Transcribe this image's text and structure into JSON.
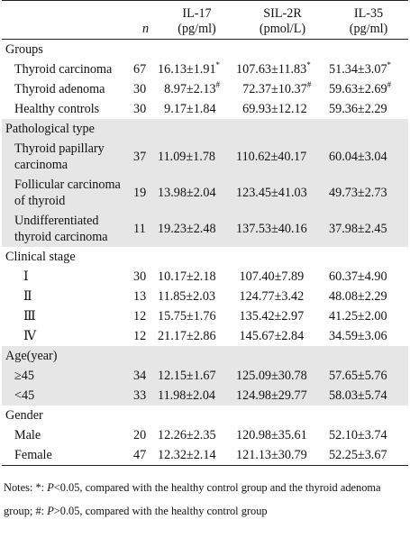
{
  "header": {
    "col_label": "",
    "col_n": "n",
    "col_il17_line1": "IL-17",
    "col_il17_line2": "(pg/ml)",
    "col_sil_line1": "SIL-2R",
    "col_sil_line2": "(pmol/L)",
    "col_il35_line1": "IL-35",
    "col_il35_line2": "(pg/ml)"
  },
  "sections": [
    {
      "title": "Groups",
      "shade": false,
      "rows": [
        {
          "label": "Thyroid carcinoma",
          "n": "67",
          "il17": "16.13±1.91",
          "il17_sup": "*",
          "sil": "107.63±11.83",
          "sil_sup": "*",
          "il35": "51.34±3.07",
          "il35_sup": "*"
        },
        {
          "label": "Thyroid adenoma",
          "n": "30",
          "il17": "8.97±2.13",
          "il17_sup": "#",
          "sil": "72.37±10.37",
          "sil_sup": "#",
          "il35": "59.63±2.69",
          "il35_sup": "#"
        },
        {
          "label": "Healthy controls",
          "n": "30",
          "il17": "9.17±1.84",
          "il17_sup": "",
          "sil": "69.93±12.12",
          "sil_sup": "",
          "il35": "59.36±2.29",
          "il35_sup": ""
        }
      ]
    },
    {
      "title": "Pathological type",
      "shade": true,
      "rows": [
        {
          "label_line1": "Thyroid papillary",
          "label_line2": "carcinoma",
          "n": "37",
          "il17": "11.09±1.78",
          "sil": "110.62±40.17",
          "il35": "60.04±3.04"
        },
        {
          "label_line1": "Follicular carcinoma",
          "label_line2": "of thyroid",
          "n": "19",
          "il17": "13.98±2.04",
          "sil": "123.45±41.03",
          "il35": "49.73±2.73"
        },
        {
          "label_line1": "Undifferentiated",
          "label_line2": "thyroid carcinoma",
          "n": "11",
          "il17": "19.23±2.48",
          "sil": "137.53±40.16",
          "il35": "37.98±2.45"
        }
      ]
    },
    {
      "title": "Clinical stage",
      "shade": false,
      "rows": [
        {
          "label": "Ⅰ",
          "n": "30",
          "il17": "10.17±2.18",
          "sil": "107.40±7.89",
          "il35": "60.37±4.90"
        },
        {
          "label": "Ⅱ",
          "n": "13",
          "il17": "11.85±2.03",
          "sil": "124.77±3.42",
          "il35": "48.08±2.29"
        },
        {
          "label": "Ⅲ",
          "n": "12",
          "il17": "15.75±1.76",
          "sil": "135.42±2.97",
          "il35": "41.25±2.00"
        },
        {
          "label": "Ⅳ",
          "n": "12",
          "il17": "21.17±2.86",
          "sil": "145.67±2.84",
          "il35": "34.59±3.06"
        }
      ]
    },
    {
      "title": "Age(year)",
      "shade": true,
      "rows": [
        {
          "label": "≥45",
          "n": "34",
          "il17": "12.15±1.67",
          "sil": "125.09±30.78",
          "il35": "57.65±5.76"
        },
        {
          "label": "<45",
          "n": "33",
          "il17": "11.98±2.04",
          "sil": "124.98±29.77",
          "il35": "58.03±5.74"
        }
      ]
    },
    {
      "title": "Gender",
      "shade": false,
      "rows": [
        {
          "label": "Male",
          "n": "20",
          "il17": "12.26±2.35",
          "sil": "120.98±35.61",
          "il35": "52.10±3.74"
        },
        {
          "label": "Female",
          "n": "47",
          "il17": "12.32±2.14",
          "sil": "121.13±30.79",
          "il35": "52.25±3.67"
        }
      ]
    }
  ],
  "notes": {
    "prefix": "Notes: *: ",
    "p1": "P",
    "t1": "<0.05, compared with the healthy control group and the thyroid adenoma group; #: ",
    "p2": "P",
    "t2": ">0.05, compared with the healthy control group"
  }
}
